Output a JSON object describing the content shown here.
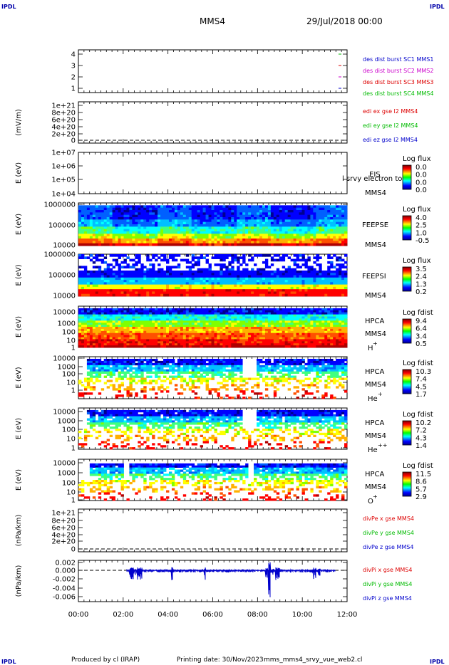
{
  "corner_tag": "IPDL",
  "header": {
    "mission": "MMS4",
    "date": "29/Jul/2018 00:00"
  },
  "footer": {
    "produced": "Produced by cl (IRAP)",
    "printing": "Printing date: 30/Nov/2023",
    "script": "mms_mms4_srvy_vue_web2.cl"
  },
  "chart_data": {
    "type": "heatmap",
    "x_ticks": [
      "00:00",
      "02:00",
      "04:00",
      "06:00",
      "08:00",
      "10:00",
      "12:00"
    ],
    "xlim": [
      "00:00",
      "12:00"
    ],
    "panels": [
      {
        "id": "burst",
        "ylabel": "",
        "y_ticks": [
          "4",
          "3",
          "2",
          "1"
        ],
        "legend": [
          {
            "text": "des dist burst SC1 MMS1",
            "color": "#0000cc"
          },
          {
            "text": "des dist burst SC2 MMS2",
            "color": "#cc00cc"
          },
          {
            "text": "des dist burst SC3 MMS3",
            "color": "#dd0000"
          },
          {
            "text": "des dist burst SC4 MMS4",
            "color": "#00bb00"
          }
        ]
      },
      {
        "id": "edi",
        "ylabel": "(mV/m)",
        "y_ticks": [
          "1e+21",
          "8e+20",
          "6e+20",
          "4e+20",
          "2e+20",
          "0"
        ],
        "legend": [
          {
            "text": "edi ex gse l2 MMS4",
            "color": "#dd0000"
          },
          {
            "text": "edi ey gse l2 MMS4",
            "color": "#00bb00"
          },
          {
            "text": "edi ez gse l2 MMS4",
            "color": "#0000cc"
          }
        ]
      },
      {
        "id": "eis",
        "ylabel": "E (eV)",
        "y_ticks": [
          "1e+07",
          "1e+06",
          "1e+05",
          "1e+04"
        ],
        "instrument": "EIS",
        "overlay": "l srvy electron to",
        "spacecraft": "MMS4",
        "colorbar": {
          "title": "Log flux",
          "ticks": [
            "0.0",
            "0.0",
            "0.0",
            "0.0"
          ]
        }
      },
      {
        "id": "feepse",
        "ylabel": "E (eV)",
        "y_ticks": [
          "1000000",
          "100000",
          "10000"
        ],
        "instrument": "FEEPSE",
        "spacecraft": "MMS4",
        "colorbar": {
          "title": "Log flux",
          "ticks": [
            "4.0",
            "2.5",
            "1.0",
            "-0.5"
          ]
        }
      },
      {
        "id": "feepsi",
        "ylabel": "E (eV)",
        "y_ticks": [
          "1000000",
          "100000",
          "10000"
        ],
        "instrument": "FEEPSI",
        "spacecraft": "MMS4",
        "colorbar": {
          "title": "Log flux",
          "ticks": [
            "3.5",
            "2.4",
            "1.3",
            "0.2"
          ]
        }
      },
      {
        "id": "hpca_h",
        "ylabel": "E (eV)",
        "y_ticks": [
          "10000",
          "1000",
          "100",
          "10",
          "1"
        ],
        "instrument": "HPCA",
        "spacecraft": "MMS4",
        "species": "H",
        "charge": "+",
        "colorbar": {
          "title": "Log fdist",
          "ticks": [
            "9.4",
            "6.4",
            "3.4",
            "0.5"
          ]
        }
      },
      {
        "id": "hpca_he",
        "ylabel": "E (eV)",
        "y_ticks": [
          "10000",
          "1000",
          "100",
          "10",
          "1"
        ],
        "instrument": "HPCA",
        "spacecraft": "MMS4",
        "species": "He",
        "charge": "+",
        "colorbar": {
          "title": "Log fdist",
          "ticks": [
            "10.3",
            "7.4",
            "4.5",
            "1.7"
          ]
        }
      },
      {
        "id": "hpca_he2",
        "ylabel": "E (eV)",
        "y_ticks": [
          "10000",
          "1000",
          "100",
          "10",
          "1"
        ],
        "instrument": "HPCA",
        "spacecraft": "MMS4",
        "species": "He",
        "charge": "++",
        "colorbar": {
          "title": "Log fdist",
          "ticks": [
            "10.2",
            "7.2",
            "4.3",
            "1.4"
          ]
        }
      },
      {
        "id": "hpca_o",
        "ylabel": "E (eV)",
        "y_ticks": [
          "10000",
          "1000",
          "100",
          "10",
          "1"
        ],
        "instrument": "HPCA",
        "spacecraft": "MMS4",
        "species": "O",
        "charge": "+",
        "colorbar": {
          "title": "Log fdist",
          "ticks": [
            "11.5",
            "8.6",
            "5.7",
            "2.9"
          ]
        }
      },
      {
        "id": "divpe",
        "ylabel": "(nPa/km)",
        "y_ticks": [
          "1e+21",
          "8e+20",
          "6e+20",
          "4e+20",
          "2e+20",
          "0"
        ],
        "legend": [
          {
            "text": "divPe x gse MMS4",
            "color": "#dd0000"
          },
          {
            "text": "divPe y gse MMS4",
            "color": "#00bb00"
          },
          {
            "text": "divPe z gse MMS4",
            "color": "#0000cc"
          }
        ]
      },
      {
        "id": "divpi",
        "ylabel": "(nPa/km)",
        "y_ticks": [
          "0.002",
          "0.000",
          "-0.002",
          "-0.004",
          "-0.006"
        ],
        "legend": [
          {
            "text": "divPi x gse MMS4",
            "color": "#dd0000"
          },
          {
            "text": "divPi y gse MMS4",
            "color": "#00bb00"
          },
          {
            "text": "divPi z gse MMS4",
            "color": "#0000cc"
          }
        ]
      }
    ]
  }
}
